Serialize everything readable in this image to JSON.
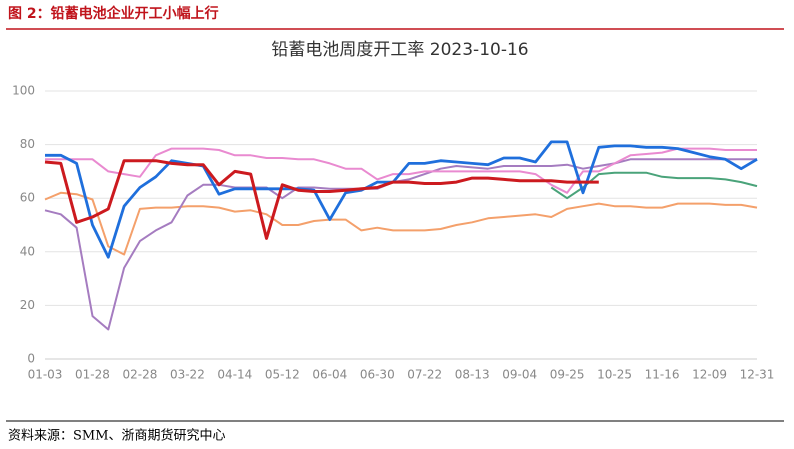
{
  "header": {
    "title": "图 2：铅蓄电池企业开工小幅上行"
  },
  "chart_data": {
    "type": "line",
    "title": "铅蓄电池周度开工率 2023-10-16",
    "categories": [
      "01-03",
      null,
      null,
      "01-28",
      null,
      null,
      "02-28",
      null,
      null,
      "03-22",
      null,
      null,
      "04-14",
      null,
      null,
      "05-12",
      null,
      null,
      "06-04",
      null,
      null,
      "06-30",
      null,
      null,
      "07-22",
      null,
      null,
      "08-13",
      null,
      null,
      "09-04",
      null,
      null,
      "09-25",
      null,
      null,
      "10-25",
      null,
      null,
      "11-16",
      null,
      null,
      "12-09",
      null,
      null,
      "12-31"
    ],
    "ylim": [
      0,
      100
    ],
    "yticks": [
      0,
      20,
      40,
      60,
      80,
      100
    ],
    "grid": true,
    "series": [
      {
        "color": "#f4a06b",
        "values": [
          59.5,
          62,
          61.5,
          59.5,
          42,
          39,
          56,
          56.5,
          56.5,
          57,
          57,
          56.5,
          55,
          55.5,
          54,
          50,
          50,
          51.5,
          52,
          52,
          48,
          49,
          48,
          48,
          48,
          48.5,
          50,
          51,
          52.5,
          53,
          53.5,
          54,
          53,
          56,
          57,
          58,
          57,
          57,
          56.5,
          56.5,
          58,
          58,
          58,
          57.5,
          57.5,
          56.5
        ]
      },
      {
        "color": "#a57cc0",
        "values": [
          55.5,
          54,
          49,
          16,
          11,
          34,
          44,
          48,
          51,
          61,
          65,
          65,
          64,
          64,
          64,
          60,
          64,
          64,
          63.5,
          63.5,
          63.5,
          63.5,
          66,
          67,
          69,
          71,
          72,
          71.5,
          71,
          72,
          72,
          72,
          72,
          72.5,
          71,
          72,
          73,
          74.5,
          74.5,
          74.5,
          74.5,
          74.5,
          74.5,
          74.5,
          74.5,
          74.5
        ]
      },
      {
        "color": "#e98ad0",
        "values": [
          74.5,
          74.5,
          74.5,
          74.5,
          70,
          69,
          68,
          76,
          78.5,
          78.5,
          78.5,
          78,
          76,
          76,
          75,
          75,
          74.5,
          74.5,
          73,
          71,
          71,
          67,
          69,
          69,
          70,
          70,
          70,
          70,
          70,
          70,
          70,
          69,
          65,
          62,
          70,
          70,
          73,
          76,
          76.5,
          77,
          78.5,
          78.5,
          78.5,
          78,
          78,
          78
        ]
      },
      {
        "color": "#4aa37a",
        "values": [
          null,
          null,
          null,
          null,
          null,
          null,
          null,
          null,
          null,
          null,
          null,
          null,
          null,
          null,
          null,
          null,
          null,
          null,
          null,
          null,
          null,
          null,
          null,
          null,
          null,
          null,
          null,
          null,
          null,
          null,
          null,
          null,
          64,
          60,
          64,
          69,
          69.5,
          69.5,
          69.5,
          68,
          67.5,
          67.5,
          67.5,
          67,
          66,
          64.5
        ]
      },
      {
        "color": "#1f6fdc",
        "values": [
          76,
          76,
          73,
          50,
          38,
          57,
          64,
          68,
          74,
          73,
          72,
          61.5,
          63.5,
          63.5,
          63.5,
          63.5,
          63.5,
          63,
          52,
          62,
          63,
          66,
          66,
          73,
          73,
          74,
          73.5,
          73,
          72.5,
          75,
          75,
          73.5,
          81,
          81,
          62,
          79,
          79.5,
          79.5,
          79,
          79,
          78.5,
          77,
          75.5,
          74.5,
          71,
          74.5
        ]
      },
      {
        "color": "#cc1a1f",
        "values": [
          73.5,
          73,
          51,
          53,
          56,
          74,
          74,
          74,
          73,
          72.5,
          72.5,
          65,
          70,
          69,
          45,
          65,
          63,
          62.5,
          62.5,
          63,
          63.5,
          64,
          66,
          66,
          65.5,
          65.5,
          66,
          67.5,
          67.5,
          67,
          66.5,
          66.5,
          66.5,
          66,
          66,
          66,
          null,
          null,
          null,
          null,
          null,
          null,
          null,
          null,
          null,
          null
        ]
      }
    ]
  },
  "footer": {
    "source": "资料来源：SMM、浙商期货研究中心"
  }
}
